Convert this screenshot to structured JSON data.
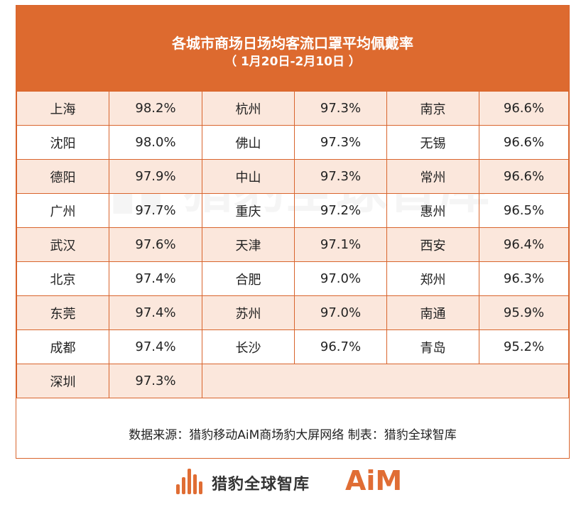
{
  "header": {
    "title": "各城市商场日场均客流口罩平均佩戴率",
    "subtitle": "（ 1月20日-2月10日 ）"
  },
  "rows": [
    [
      {
        "city": "上海",
        "value": "98.2%"
      },
      {
        "city": "杭州",
        "value": "97.3%"
      },
      {
        "city": "南京",
        "value": "96.6%"
      }
    ],
    [
      {
        "city": "沈阳",
        "value": "98.0%"
      },
      {
        "city": "佛山",
        "value": "97.3%"
      },
      {
        "city": "无锡",
        "value": "96.6%"
      }
    ],
    [
      {
        "city": "德阳",
        "value": "97.9%"
      },
      {
        "city": "中山",
        "value": "97.3%"
      },
      {
        "city": "常州",
        "value": "96.6%"
      }
    ],
    [
      {
        "city": "广州",
        "value": "97.7%"
      },
      {
        "city": "重庆",
        "value": "97.2%"
      },
      {
        "city": "惠州",
        "value": "96.5%"
      }
    ],
    [
      {
        "city": "武汉",
        "value": "97.6%"
      },
      {
        "city": "天津",
        "value": "97.1%"
      },
      {
        "city": "西安",
        "value": "96.4%"
      }
    ],
    [
      {
        "city": "北京",
        "value": "97.4%"
      },
      {
        "city": "合肥",
        "value": "97.0%"
      },
      {
        "city": "郑州",
        "value": "96.3%"
      }
    ],
    [
      {
        "city": "东莞",
        "value": "97.4%"
      },
      {
        "city": "苏州",
        "value": "97.0%"
      },
      {
        "city": "南通",
        "value": "95.9%"
      }
    ],
    [
      {
        "city": "成都",
        "value": "97.4%"
      },
      {
        "city": "长沙",
        "value": "96.7%"
      },
      {
        "city": "青岛",
        "value": "95.2%"
      }
    ],
    [
      {
        "city": "深圳",
        "value": "97.3%"
      }
    ]
  ],
  "source": "数据来源：猎豹移动AiM商场豹大屏网络  制表：猎豹全球智库",
  "footer": {
    "brand": "猎豹全球智库",
    "aim_logo": "AiM"
  },
  "colors": {
    "accent": "#dd6a2f",
    "row_tint": "#fbe7dc"
  }
}
